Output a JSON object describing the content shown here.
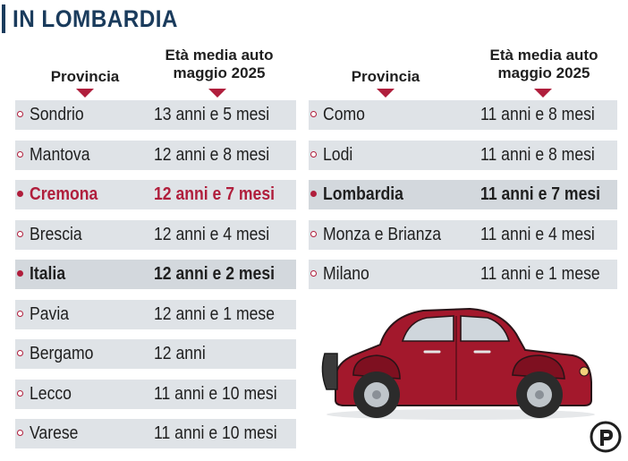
{
  "title": "IN LOMBARDIA",
  "headers": {
    "province": "Provincia",
    "age_line1": "Età media auto",
    "age_line2": "maggio 2025"
  },
  "left_table": [
    {
      "province": "Sondrio",
      "age": "13 anni e 5 mesi",
      "style": "normal"
    },
    {
      "province": "Mantova",
      "age": "12 anni e 8 mesi",
      "style": "normal"
    },
    {
      "province": "Cremona",
      "age": "12 anni e 7 mesi",
      "style": "highlight"
    },
    {
      "province": "Brescia",
      "age": "12 anni e 4 mesi",
      "style": "normal"
    },
    {
      "province": "Italia",
      "age": "12 anni e 2 mesi",
      "style": "bold"
    },
    {
      "province": "Pavia",
      "age": "12 anni e 1 mese",
      "style": "normal"
    },
    {
      "province": "Bergamo",
      "age": "12 anni",
      "style": "normal"
    },
    {
      "province": "Lecco",
      "age": "11 anni e 10 mesi",
      "style": "normal"
    },
    {
      "province": "Varese",
      "age": "11 anni e 10 mesi",
      "style": "normal"
    }
  ],
  "right_table": [
    {
      "province": "Como",
      "age": "11 anni e 8 mesi",
      "style": "normal"
    },
    {
      "province": "Lodi",
      "age": "11 anni e 8 mesi",
      "style": "normal"
    },
    {
      "province": "Lombardia",
      "age": "11 anni e 7 mesi",
      "style": "bold"
    },
    {
      "province": "Monza e Brianza",
      "age": "11 anni e 4 mesi",
      "style": "normal"
    },
    {
      "province": "Milano",
      "age": "11 anni e 1 mese",
      "style": "normal"
    }
  ],
  "colors": {
    "accent": "#b01e3c",
    "title": "#1a3b5c",
    "row": "#dfe3e7",
    "car_body": "#a3182c"
  },
  "icons": {
    "car": "vintage-car-illustration",
    "logo": "publisher-p-logo"
  }
}
